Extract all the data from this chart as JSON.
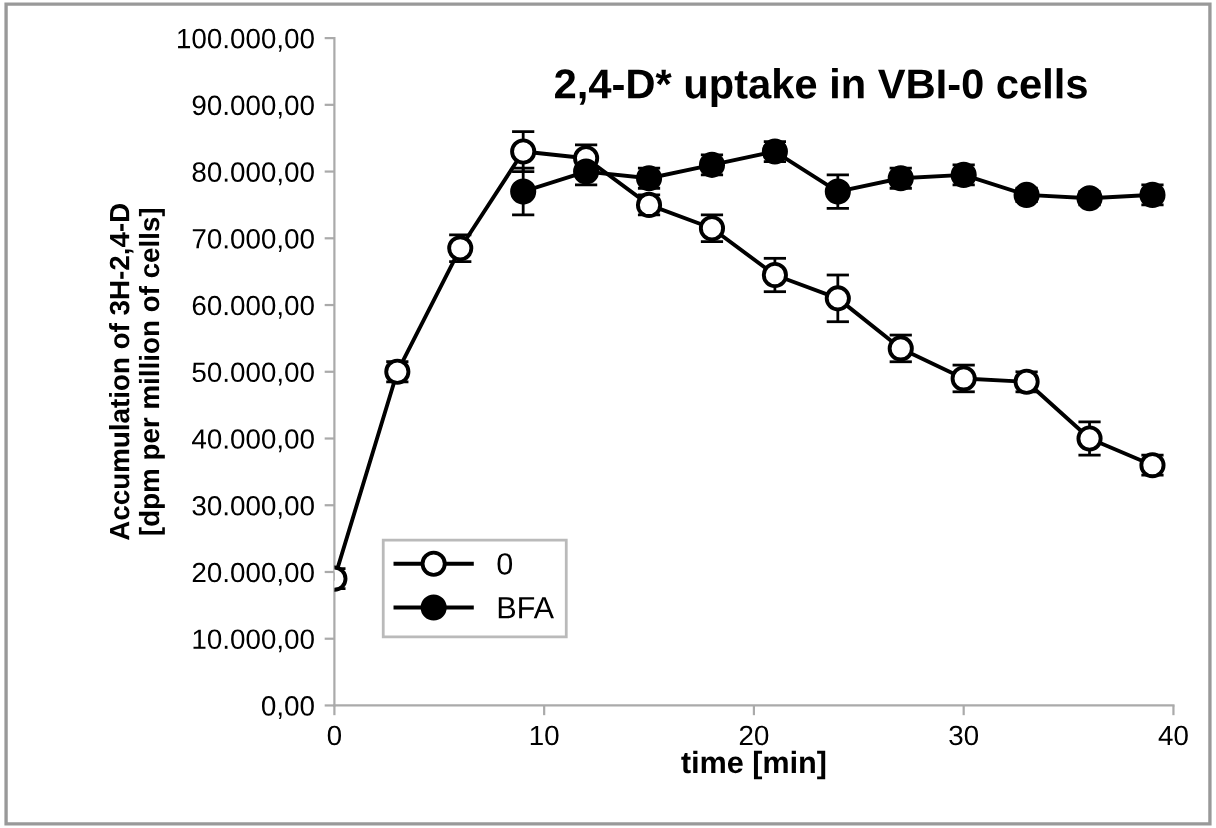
{
  "chart_data": {
    "type": "line",
    "title": "2,4-D* uptake in VBI-0 cells",
    "xlabel": "time [min]",
    "ylabel": "Accumulation of 3H-2,4-D\n[dpm per million of cells]",
    "xlim": [
      0,
      40
    ],
    "xticks": [
      0,
      10,
      20,
      30,
      40
    ],
    "ylim": [
      0,
      100000
    ],
    "yticks": [
      {
        "value": 0,
        "label": "0,00"
      },
      {
        "value": 10000,
        "label": "10.000,00"
      },
      {
        "value": 20000,
        "label": "20.000,00"
      },
      {
        "value": 30000,
        "label": "30.000,00"
      },
      {
        "value": 40000,
        "label": "40.000,00"
      },
      {
        "value": 50000,
        "label": "50.000,00"
      },
      {
        "value": 60000,
        "label": "60.000,00"
      },
      {
        "value": 70000,
        "label": "70.000,00"
      },
      {
        "value": 80000,
        "label": "80.000,00"
      },
      {
        "value": 90000,
        "label": "90.000,00"
      },
      {
        "value": 100000,
        "label": "100.000,00"
      }
    ],
    "grid": false,
    "legend": "bottom left",
    "marker": "circle",
    "line_style": "solid",
    "series": [
      {
        "name": "0",
        "color": "#ffffff",
        "x": [
          0,
          3,
          6,
          9,
          12,
          15,
          18,
          21,
          24,
          27,
          30,
          33,
          36,
          39
        ],
        "values": [
          19000,
          50000,
          68500,
          83000,
          82000,
          75000,
          71500,
          64500,
          61000,
          53500,
          49000,
          48500,
          40000,
          36000
        ],
        "errors": [
          1500,
          1500,
          2000,
          3000,
          2000,
          1500,
          2000,
          2500,
          3500,
          2000,
          2000,
          1500,
          2500,
          1500
        ]
      },
      {
        "name": "BFA",
        "color": "#000000",
        "x": [
          9,
          12,
          15,
          18,
          21,
          24,
          27,
          30,
          33,
          36,
          39
        ],
        "values": [
          77000,
          80000,
          79000,
          81000,
          83000,
          77000,
          79000,
          79500,
          76500,
          76000,
          76500
        ],
        "errors": [
          3500,
          2000,
          1500,
          1500,
          1500,
          2500,
          1500,
          1500,
          1000,
          1000,
          1500
        ]
      }
    ]
  }
}
